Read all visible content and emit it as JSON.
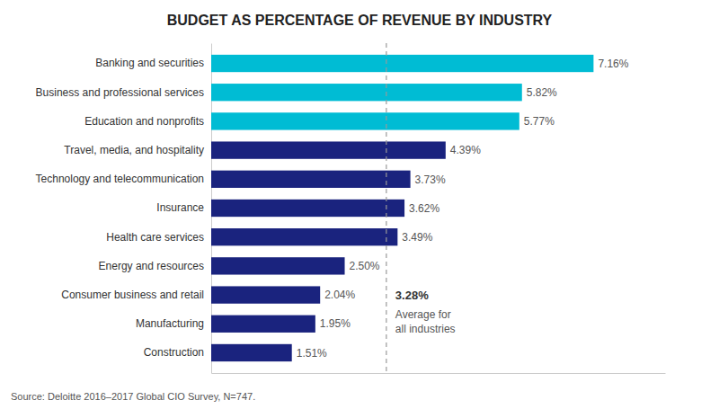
{
  "chart_data": {
    "type": "bar",
    "orientation": "horizontal",
    "title": "BUDGET AS PERCENTAGE OF REVENUE BY INDUSTRY",
    "categories": [
      "Banking and securities",
      "Business and professional services",
      "Education and nonprofits",
      "Travel, media, and hospitality",
      "Technology and telecommunication",
      "Insurance",
      "Health care services",
      "Energy and resources",
      "Consumer business and retail",
      "Manufacturing",
      "Construction"
    ],
    "values": [
      7.16,
      5.82,
      5.77,
      4.39,
      3.73,
      3.62,
      3.49,
      2.5,
      2.04,
      1.95,
      1.51
    ],
    "value_labels": [
      "7.16%",
      "5.82%",
      "5.77%",
      "4.39%",
      "3.73%",
      "3.62%",
      "3.49%",
      "2.50%",
      "2.04%",
      "1.95%",
      "1.51%"
    ],
    "colors": [
      "#00bcd4",
      "#00bcd4",
      "#00bcd4",
      "#1a237e",
      "#1a237e",
      "#1a237e",
      "#1a237e",
      "#1a237e",
      "#1a237e",
      "#1a237e",
      "#1a237e"
    ],
    "data_labels": true,
    "average": {
      "value": 3.28,
      "label": "3.28%",
      "text": "Average for\nall industries"
    },
    "source": "Source: Deloitte 2016–2017 Global CIO Survey, N=747.",
    "xlim": [
      0,
      8.5
    ],
    "tick_labels": "y",
    "grid": false
  }
}
